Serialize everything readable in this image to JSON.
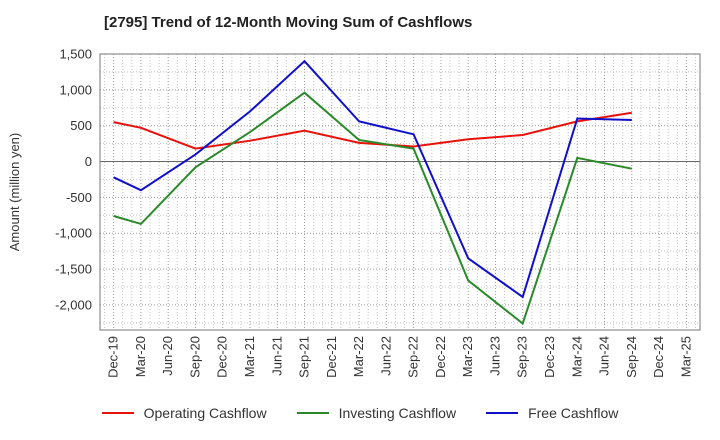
{
  "chart_data": {
    "type": "line",
    "title": "[2795]  Trend of 12-Month Moving Sum of Cashflows",
    "xlabel": "",
    "ylabel": "Amount (million yen)",
    "ylim": [
      -2350,
      1500
    ],
    "yticks": [
      1500,
      1000,
      500,
      0,
      -500,
      -1000,
      -1500,
      -2000
    ],
    "ytick_labels": [
      "1,500",
      "1,000",
      "500",
      "0",
      "-500",
      "-1,000",
      "-1,500",
      "-2,000"
    ],
    "categories": [
      "Dec-19",
      "Mar-20",
      "Jun-20",
      "Sep-20",
      "Dec-20",
      "Mar-21",
      "Jun-21",
      "Sep-21",
      "Dec-21",
      "Mar-22",
      "Jun-22",
      "Sep-22",
      "Dec-22",
      "Mar-23",
      "Jun-23",
      "Sep-23",
      "Dec-23",
      "Mar-24",
      "Jun-24",
      "Sep-24",
      "Dec-24",
      "Mar-25"
    ],
    "grid": true,
    "legend_position": "bottom",
    "series": [
      {
        "name": "Operating Cashflow",
        "color": "#e8120c",
        "points": [
          [
            "Dec-19",
            550
          ],
          [
            "Mar-20",
            470
          ],
          [
            "Sep-20",
            180
          ],
          [
            "Mar-21",
            290
          ],
          [
            "Sep-21",
            430
          ],
          [
            "Mar-22",
            260
          ],
          [
            "Sep-22",
            210
          ],
          [
            "Mar-23",
            310
          ],
          [
            "Sep-23",
            370
          ],
          [
            "Mar-24",
            560
          ],
          [
            "Sep-24",
            680
          ]
        ]
      },
      {
        "name": "Investing Cashflow",
        "color": "#2a8a2a",
        "points": [
          [
            "Dec-19",
            -760
          ],
          [
            "Mar-20",
            -870
          ],
          [
            "Sep-20",
            -80
          ],
          [
            "Mar-21",
            410
          ],
          [
            "Sep-21",
            960
          ],
          [
            "Mar-22",
            300
          ],
          [
            "Sep-22",
            180
          ],
          [
            "Mar-23",
            -1660
          ],
          [
            "Sep-23",
            -2260
          ],
          [
            "Mar-24",
            50
          ],
          [
            "Sep-24",
            -100
          ]
        ]
      },
      {
        "name": "Free Cashflow",
        "color": "#1010cc",
        "points": [
          [
            "Dec-19",
            -220
          ],
          [
            "Mar-20",
            -400
          ],
          [
            "Sep-20",
            100
          ],
          [
            "Mar-21",
            700
          ],
          [
            "Sep-21",
            1400
          ],
          [
            "Mar-22",
            560
          ],
          [
            "Sep-22",
            380
          ],
          [
            "Mar-23",
            -1350
          ],
          [
            "Sep-23",
            -1890
          ],
          [
            "Mar-24",
            600
          ],
          [
            "Sep-24",
            580
          ]
        ]
      }
    ]
  }
}
